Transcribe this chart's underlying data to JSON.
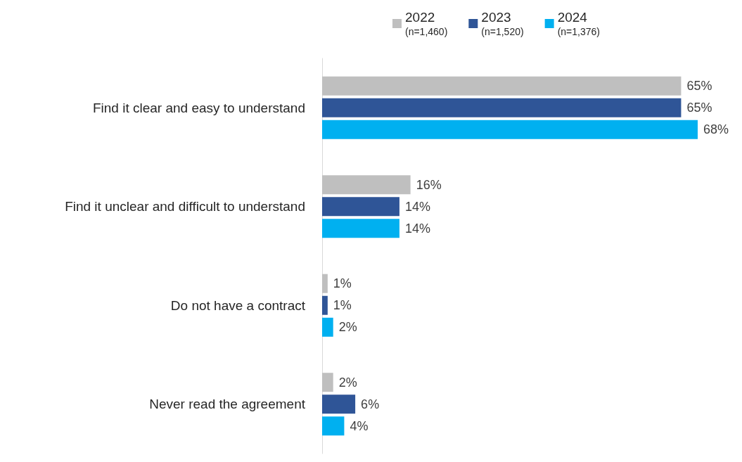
{
  "chart_data": {
    "type": "bar",
    "orientation": "horizontal",
    "legend": "top",
    "categories": [
      "Find it clear and easy to understand",
      "Find it unclear and difficult to understand",
      "Do not have a contract",
      "Never read the agreement"
    ],
    "series": [
      {
        "name": "2022\n(n=1,460)",
        "color": "#bfbfbf",
        "values": [
          65,
          16,
          1,
          2
        ],
        "value_labels": [
          "65%",
          "16%",
          "1%",
          "2%"
        ]
      },
      {
        "name": "2023\n(n=1,520)",
        "color": "#2f5597",
        "values": [
          65,
          14,
          1,
          6
        ],
        "value_labels": [
          "65%",
          "14%",
          "1%",
          "6%"
        ]
      },
      {
        "name": "2024\n(n=1,376)",
        "color": "#00b0f0",
        "values": [
          68,
          14,
          2,
          4
        ],
        "value_labels": [
          "68%",
          "14%",
          "2%",
          "4%"
        ]
      }
    ]
  }
}
